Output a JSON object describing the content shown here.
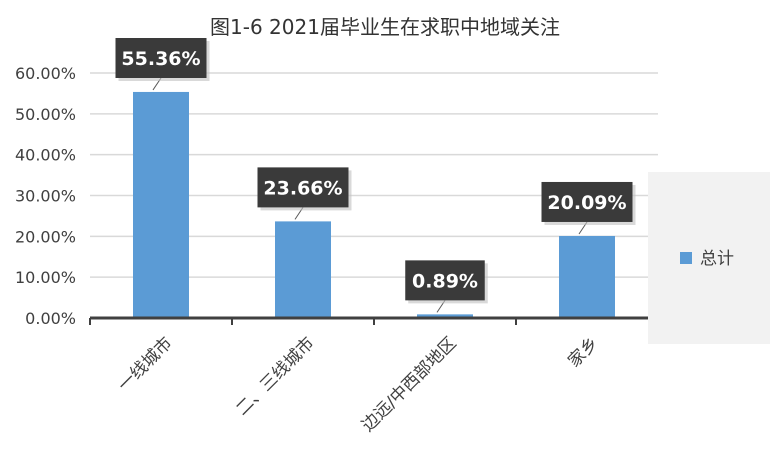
{
  "chart_data": {
    "type": "bar",
    "title": "图1-6  2021届毕业生在求职中地域关注",
    "categories": [
      "一线城市",
      "二、三线城市",
      "边远/中西部地区",
      "家乡"
    ],
    "series": [
      {
        "name": "总计",
        "values": [
          55.36,
          23.66,
          0.89,
          20.09
        ],
        "value_labels": [
          "55.36%",
          "23.66%",
          "0.89%",
          "20.09%"
        ]
      }
    ],
    "ylim": [
      0,
      60
    ],
    "yticks": [
      0,
      10,
      20,
      30,
      40,
      50,
      60
    ],
    "ytick_labels": [
      "0.00%",
      "10.00%",
      "20.00%",
      "30.00%",
      "40.00%",
      "50.00%",
      "60.00%"
    ],
    "xlabel": "",
    "ylabel": "",
    "grid": true,
    "legend_position": "right",
    "colors": {
      "bar": "#5B9BD5",
      "label_box": "#3A3A3A",
      "label_text": "#FFFFFF",
      "grid": "#D9D9D9",
      "axis": "#404040",
      "legend_bg": "#F2F2F2"
    }
  }
}
